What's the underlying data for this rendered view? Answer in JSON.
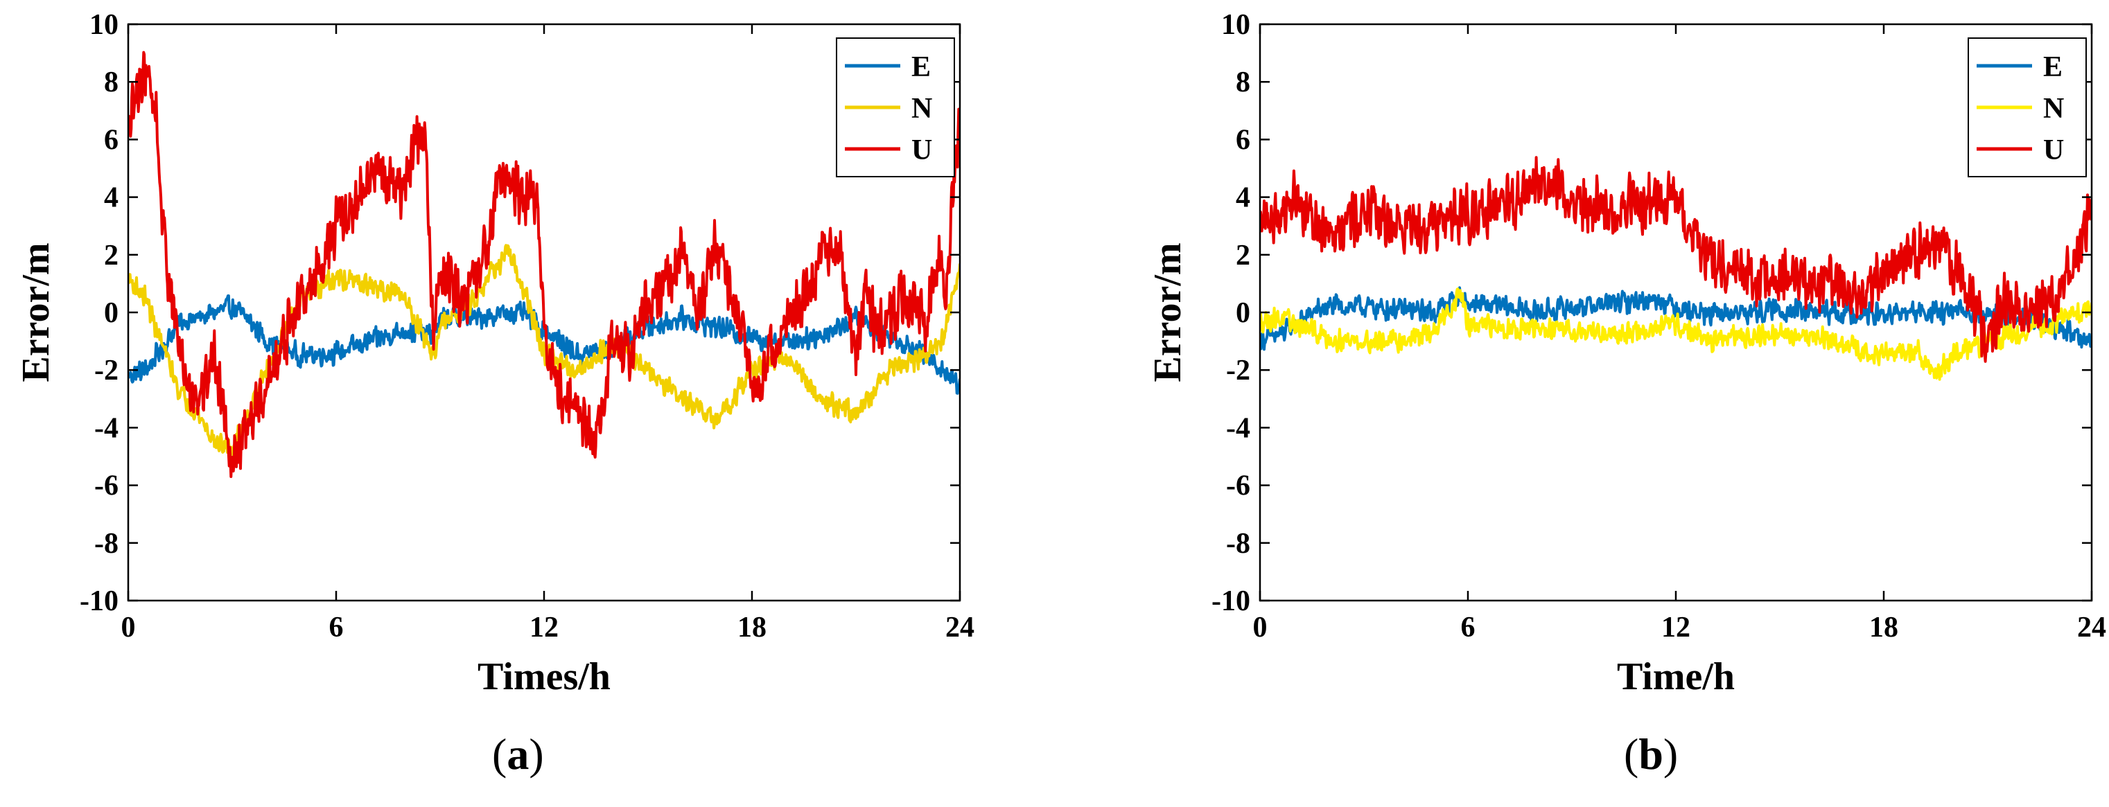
{
  "figure": {
    "colors": {
      "E": "#0072BD",
      "N": "#EDD500",
      "U": "#E60000",
      "axis": "#000000"
    }
  },
  "chart_data": [
    {
      "type": "line",
      "panel_label": "a",
      "title": "",
      "xlabel": "Times/h",
      "ylabel": "Error/m",
      "xlim": [
        0,
        24
      ],
      "ylim": [
        -10,
        10
      ],
      "xticks": [
        0,
        6,
        12,
        18,
        24
      ],
      "yticks": [
        -10,
        -8,
        -6,
        -4,
        -2,
        0,
        2,
        4,
        6,
        8,
        10
      ],
      "legend": {
        "placement": "top-right",
        "entries": [
          "E",
          "N",
          "U"
        ]
      },
      "noise": {
        "E": 0.45,
        "N": 0.45,
        "U": 1.2
      },
      "series": [
        {
          "name": "E",
          "color": "#0072BD",
          "x": [
            0,
            0.5,
            1,
            1.5,
            2,
            3,
            3.5,
            4,
            5,
            6,
            7,
            8,
            8.8,
            9,
            10,
            11,
            11.5,
            12,
            13,
            14,
            15,
            16,
            17,
            18,
            19,
            20,
            21,
            22,
            23,
            23.5,
            24
          ],
          "y": [
            -2.2,
            -2.0,
            -1.2,
            -0.3,
            -0.2,
            0.2,
            -0.3,
            -1.0,
            -1.5,
            -1.4,
            -1.0,
            -0.6,
            -0.8,
            -0.2,
            -0.2,
            0.0,
            -0.1,
            -0.6,
            -1.5,
            -1.2,
            -0.5,
            -0.2,
            -0.5,
            -0.9,
            -1.0,
            -0.8,
            -0.2,
            -0.8,
            -1.5,
            -2.0,
            -2.5
          ]
        },
        {
          "name": "N",
          "color": "#F2D000",
          "x": [
            0,
            0.5,
            1,
            1.5,
            2,
            2.5,
            3,
            4,
            5,
            6,
            7,
            8,
            8.8,
            9,
            10,
            10.5,
            11,
            11.5,
            12,
            13,
            14,
            15,
            16,
            17,
            18,
            19,
            20,
            21,
            22,
            23,
            23.5,
            24
          ],
          "y": [
            1.2,
            0.5,
            -1.2,
            -2.8,
            -3.5,
            -4.5,
            -4.8,
            -2.0,
            0.5,
            1.2,
            0.9,
            0.5,
            -1.5,
            -0.5,
            0.5,
            1.5,
            2.0,
            0.5,
            -1.5,
            -2.0,
            -1.0,
            -2.0,
            -3.0,
            -3.8,
            -2.0,
            -1.5,
            -3.0,
            -3.5,
            -2.0,
            -1.5,
            -1.0,
            1.5
          ]
        },
        {
          "name": "U",
          "color": "#E60000",
          "x": [
            0,
            0.3,
            0.5,
            0.8,
            1,
            1.3,
            1.6,
            2,
            2.5,
            2.8,
            3,
            3.5,
            4,
            4.5,
            5,
            5.5,
            6,
            6.5,
            7,
            7.5,
            8,
            8.3,
            8.6,
            8.8,
            9,
            9.5,
            10,
            10.4,
            10.6,
            11,
            11.5,
            11.8,
            12,
            12.5,
            13,
            13.5,
            14,
            14.5,
            15,
            15.5,
            16,
            16.5,
            17,
            17.5,
            18,
            18.5,
            19,
            19.5,
            20,
            20.5,
            21,
            21.3,
            21.6,
            22,
            22.5,
            23,
            23.3,
            23.6,
            24
          ],
          "y": [
            6.0,
            8.0,
            8.5,
            7.0,
            3.0,
            0.0,
            -2.0,
            -3.0,
            -1.5,
            -3.5,
            -5.0,
            -4.0,
            -2.5,
            -1.0,
            0.5,
            1.5,
            3.0,
            3.5,
            5.0,
            4.5,
            4.0,
            6.5,
            5.5,
            -1.0,
            1.5,
            0.5,
            1.0,
            2.5,
            4.5,
            4.5,
            4.0,
            4.2,
            -1.0,
            -3.0,
            -3.5,
            -4.5,
            -1.0,
            -1.5,
            0.5,
            1.0,
            2.0,
            0.0,
            2.5,
            0.5,
            -2.5,
            -1.5,
            -0.5,
            0.5,
            2.0,
            2.2,
            -1.5,
            1.0,
            -1.0,
            0.0,
            0.5,
            -0.5,
            2.0,
            1.0,
            7.0
          ]
        }
      ]
    },
    {
      "type": "line",
      "panel_label": "b",
      "title": "",
      "xlabel": "Time/h",
      "ylabel": "Error/m",
      "xlim": [
        0,
        24
      ],
      "ylim": [
        -10,
        10
      ],
      "xticks": [
        0,
        6,
        12,
        18,
        24
      ],
      "yticks": [
        -10,
        -8,
        -6,
        -4,
        -2,
        0,
        2,
        4,
        6,
        8,
        10
      ],
      "legend": {
        "placement": "top-right",
        "entries": [
          "E",
          "N",
          "U"
        ]
      },
      "noise": {
        "E": 0.45,
        "N": 0.45,
        "U": 1.2
      },
      "series": [
        {
          "name": "E",
          "color": "#0072BD",
          "x": [
            0,
            0.5,
            1,
            1.5,
            2,
            3,
            4,
            5,
            5.8,
            6,
            7,
            8,
            9,
            10,
            11,
            11.5,
            12,
            13,
            14,
            15,
            16,
            17,
            18,
            19,
            20,
            21,
            22,
            23,
            24
          ],
          "y": [
            -0.9,
            -0.8,
            -0.5,
            0.0,
            0.2,
            0.2,
            0.1,
            0.0,
            0.6,
            0.3,
            0.2,
            0.0,
            0.2,
            0.3,
            0.4,
            0.5,
            0.2,
            -0.1,
            0.0,
            0.1,
            0.0,
            0.0,
            -0.1,
            0.0,
            0.0,
            0.0,
            -0.2,
            -0.5,
            -1.0
          ]
        },
        {
          "name": "N",
          "color": "#FFEE00",
          "x": [
            0,
            0.5,
            1,
            2,
            3,
            4,
            5,
            5.8,
            6,
            7,
            8,
            9,
            10,
            11,
            12,
            13,
            14,
            15,
            16,
            17,
            18,
            19,
            19.5,
            20,
            21,
            22,
            23,
            24
          ],
          "y": [
            -0.3,
            -0.2,
            -0.4,
            -0.9,
            -1.0,
            -1.0,
            -0.7,
            0.7,
            -0.5,
            -0.5,
            -0.6,
            -0.6,
            -0.7,
            -0.7,
            -0.4,
            -1.0,
            -0.8,
            -0.8,
            -0.8,
            -1.2,
            -1.5,
            -1.3,
            -2.2,
            -1.5,
            -1.0,
            -0.6,
            -0.3,
            0.2
          ]
        },
        {
          "name": "U",
          "color": "#E60000",
          "x": [
            0,
            0.5,
            1,
            1.5,
            2,
            3,
            4,
            5,
            6,
            7,
            8,
            8.5,
            9,
            10,
            11,
            11.8,
            12.5,
            13,
            14,
            15,
            16,
            17,
            17.5,
            18,
            19,
            19.5,
            20,
            20.5,
            21,
            21.5,
            22,
            23,
            23.5,
            24
          ],
          "y": [
            3.0,
            3.5,
            4.0,
            3.2,
            3.0,
            3.5,
            3.0,
            3.2,
            3.5,
            3.5,
            4.5,
            4.5,
            3.8,
            3.5,
            3.8,
            4.0,
            2.5,
            2.0,
            1.2,
            1.0,
            1.2,
            1.0,
            0.5,
            1.5,
            2.0,
            2.5,
            1.5,
            0.5,
            -1.0,
            0.5,
            0.3,
            0.5,
            2.0,
            3.5
          ]
        }
      ]
    }
  ]
}
